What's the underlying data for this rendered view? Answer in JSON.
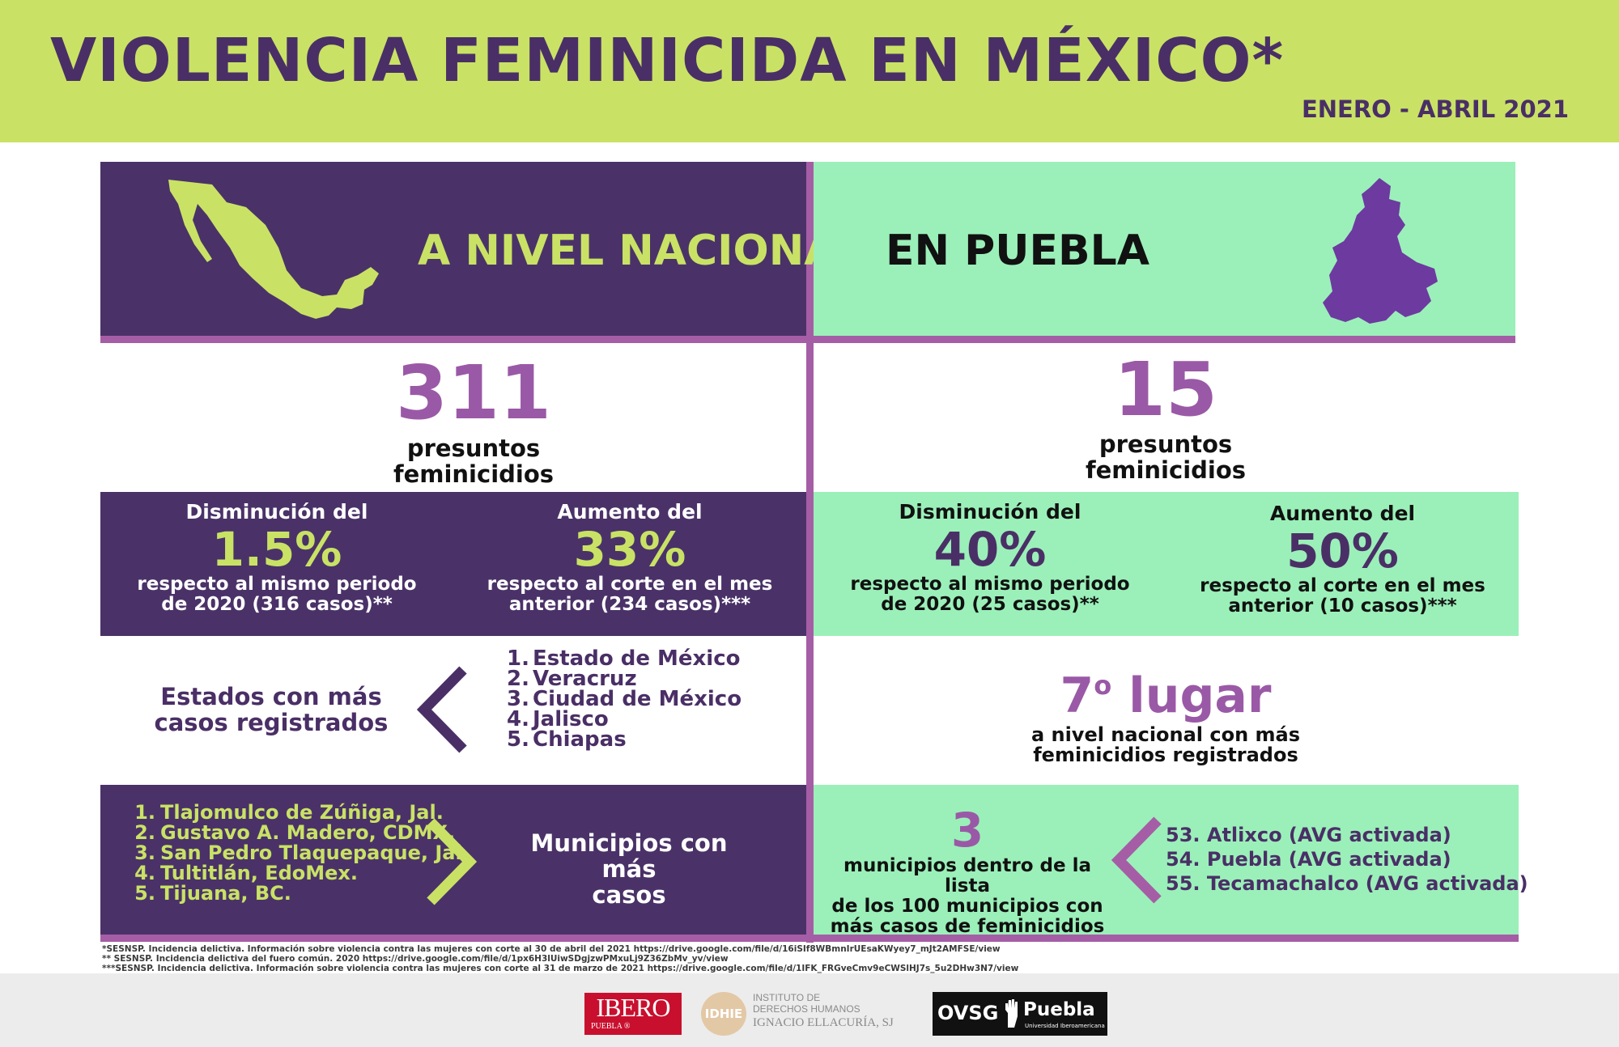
{
  "header": {
    "title": "VIOLENCIA FEMINICIDA EN MÉXICO*",
    "period": "ENERO - ABRIL 2021"
  },
  "national": {
    "heading": "A NIVEL NACIONAL",
    "count": "311",
    "count_label_1": "presuntos",
    "count_label_2": "feminicidios",
    "decrease": {
      "head": "Disminución del",
      "pct": "1.5%",
      "desc_1": "respecto al mismo periodo",
      "desc_2": "de 2020 (316 casos)**"
    },
    "increase": {
      "head": "Aumento del",
      "pct": "33%",
      "desc_1": "respecto al corte en el mes",
      "desc_2": "anterior (234 casos)***"
    },
    "states_label_1": "Estados con más",
    "states_label_2": "casos registrados",
    "states": [
      {
        "n": "1.",
        "name": "Estado de México"
      },
      {
        "n": "2.",
        "name": "Veracruz"
      },
      {
        "n": "3.",
        "name": "Ciudad de México"
      },
      {
        "n": "4.",
        "name": "Jalisco"
      },
      {
        "n": "5.",
        "name": "Chiapas"
      }
    ],
    "municipalities": [
      {
        "n": "1.",
        "name": "Tlajomulco de Zúñiga, Jal."
      },
      {
        "n": "2.",
        "name": "Gustavo A. Madero, CDMX."
      },
      {
        "n": "3.",
        "name": "San Pedro Tlaquepaque, Jal."
      },
      {
        "n": "4.",
        "name": "Tultitlán, EdoMex."
      },
      {
        "n": "5.",
        "name": "Tijuana, BC."
      }
    ],
    "municipalities_label_1": "Municipios con más",
    "municipalities_label_2": "casos"
  },
  "puebla": {
    "heading": "EN PUEBLA",
    "count": "15",
    "count_label_1": "presuntos",
    "count_label_2": "feminicidios",
    "decrease": {
      "head": "Disminución del",
      "pct": "40%",
      "desc_1": "respecto al mismo periodo",
      "desc_2": "de 2020 (25 casos)**"
    },
    "increase": {
      "head": "Aumento del",
      "pct": "50%",
      "desc_1": "respecto al corte en el mes",
      "desc_2": "anterior (10 casos)***"
    },
    "rank_num": "7",
    "rank_sup": "o",
    "rank_word": "lugar",
    "rank_desc_1": "a nivel nacional con más",
    "rank_desc_2": "feminicidios registrados",
    "muni_count": "3",
    "muni_desc_1": "municipios dentro de la lista",
    "muni_desc_2": "de los 100 municipios con",
    "muni_desc_3": "más casos de feminicidios",
    "municipalities": [
      "53. Atlixco (AVG activada)",
      "54. Puebla (AVG activada)",
      "55. Tecamachalco (AVG activada)"
    ]
  },
  "footnotes": [
    "*SESNSP. Incidencia delictiva. Información sobre violencia contra las mujeres con corte al 30 de abril del 2021 https://drive.google.com/file/d/16iSIf8WBmnIrUEsaKWyey7_mJt2AMFSE/view",
    "** SESNSP. Incidencia delictiva del fuero común. 2020 https://drive.google.com/file/d/1px6H3lUiwSDgjzwPMxuLj9Z36ZbMv_yv/view",
    "***SESNSP. Incidencia delictiva. Información sobre violencia contra las mujeres con corte al 31 de marzo de 2021 https://drive.google.com/file/d/1IFK_FRGveCmv9eCWSlHJ7s_5u2DHw3N7/view"
  ],
  "logos": {
    "ibero": "IBERO",
    "ibero_sub": "PUEBLA ®",
    "idhie_mark": "IDHIE",
    "idhie_line1": "INSTITUTO DE",
    "idhie_line2": "DERECHOS HUMANOS",
    "idhie_line3": "IGNACIO ELLACURÍA, SJ",
    "ovsg": "OVSG",
    "ovsg_puebla": "Puebla",
    "ovsg_sub": "Universidad Iberoamericana"
  }
}
